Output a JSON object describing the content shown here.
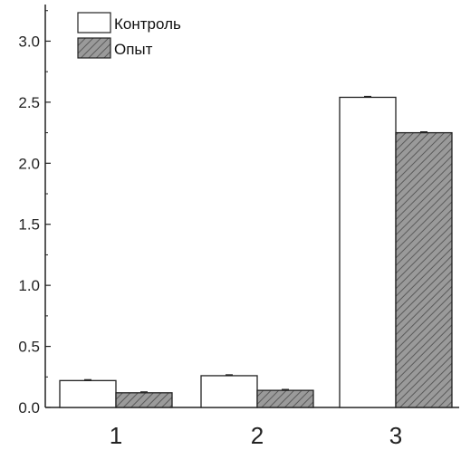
{
  "chart_data": {
    "type": "bar",
    "categories": [
      "1",
      "2",
      "3"
    ],
    "series": [
      {
        "name": "Контроль",
        "values": [
          0.22,
          0.26,
          2.54
        ],
        "fill": "#ffffff",
        "pattern": "none"
      },
      {
        "name": "Опыт",
        "values": [
          0.12,
          0.14,
          2.25
        ],
        "fill": "#9a9a9a",
        "pattern": "hatch"
      }
    ],
    "title": "",
    "xlabel": "",
    "ylabel": "",
    "ylim": [
      0,
      3.3
    ],
    "yticks": [
      "0.0",
      "0.5",
      "1.0",
      "1.5",
      "2.0",
      "2.5",
      "3.0"
    ],
    "grid": false,
    "legend_position": "top-left",
    "error_bars": true
  }
}
